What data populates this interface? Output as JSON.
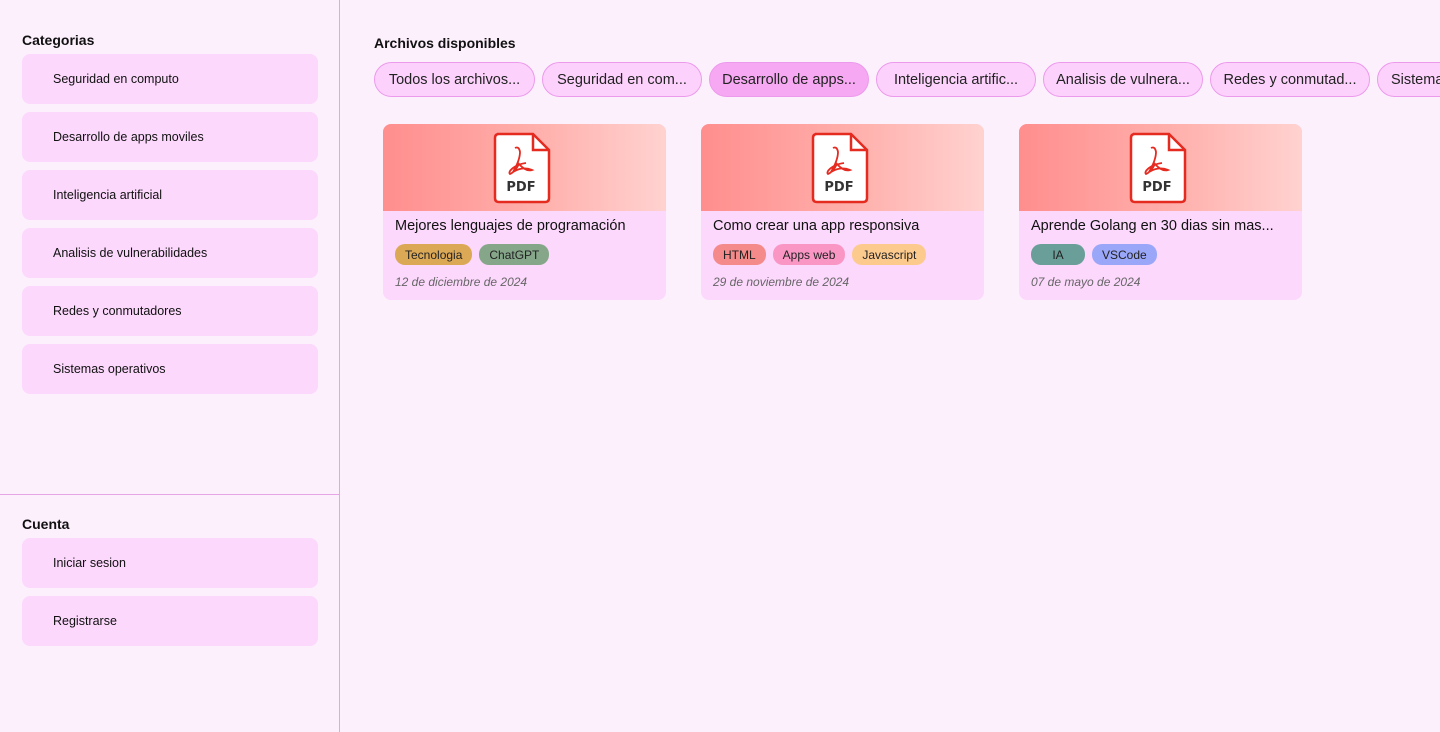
{
  "sidebar": {
    "categories_title": "Categorias",
    "categories": [
      {
        "label": "Seguridad en computo"
      },
      {
        "label": "Desarrollo de apps moviles"
      },
      {
        "label": "Inteligencia artificial"
      },
      {
        "label": "Analisis de vulnerabilidades"
      },
      {
        "label": "Redes y conmutadores"
      },
      {
        "label": "Sistemas operativos"
      }
    ],
    "account_title": "Cuenta",
    "account": [
      {
        "label": "Iniciar sesion"
      },
      {
        "label": "Registrarse"
      }
    ]
  },
  "main": {
    "title": "Archivos disponibles",
    "filters": [
      {
        "label": "Todos los archivos..."
      },
      {
        "label": "Seguridad en com..."
      },
      {
        "label": "Desarrollo de apps...",
        "active": true
      },
      {
        "label": "Inteligencia artific..."
      },
      {
        "label": "Analisis de vulnera..."
      },
      {
        "label": "Redes y conmutad..."
      },
      {
        "label": "Sistemas operativos"
      }
    ],
    "files": [
      {
        "icon": "pdf-file-icon",
        "icon_text": "PDF",
        "title": "Mejores lenguajes de programación",
        "tags": [
          {
            "label": "Tecnologia",
            "color": "#dba856"
          },
          {
            "label": "ChatGPT",
            "color": "#86a68a"
          }
        ],
        "date": "12 de diciembre de 2024"
      },
      {
        "icon": "pdf-file-icon",
        "icon_text": "PDF",
        "title": "Como crear una app responsiva",
        "tags": [
          {
            "label": "HTML",
            "color": "#f48a8a"
          },
          {
            "label": "Apps web",
            "color": "#f996c4"
          },
          {
            "label": "Javascript",
            "color": "#fdca8e"
          }
        ],
        "date": "29 de noviembre de 2024"
      },
      {
        "icon": "pdf-file-icon",
        "icon_text": "PDF",
        "title": "Aprende Golang en 30 dias sin mas...",
        "tags": [
          {
            "label": "IA",
            "color": "#6a9e98"
          },
          {
            "label": "VSCode",
            "color": "#9aa6f8"
          }
        ],
        "date": "07 de mayo de 2024"
      }
    ]
  }
}
